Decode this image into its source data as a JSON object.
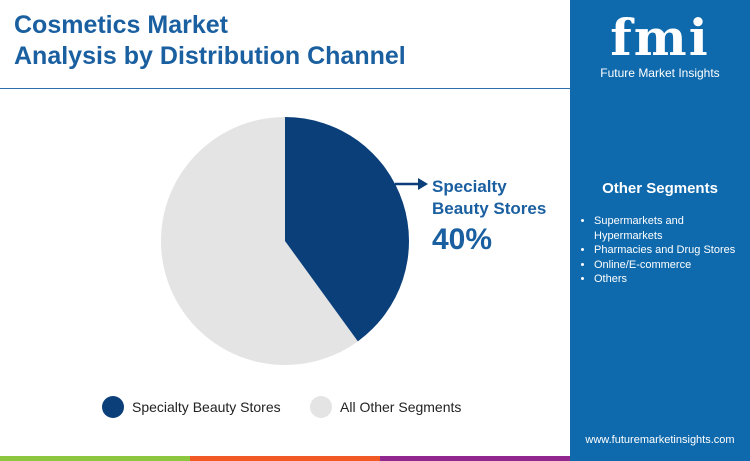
{
  "title": [
    "Cosmetics Market",
    "Analysis by Distribution Channel"
  ],
  "brand": {
    "logo": "fmi",
    "name": "Future Market Insights",
    "url": "www.futuremarketinsights.com"
  },
  "side": {
    "heading": "Other Segments",
    "items": [
      "Supermarkets and Hypermarkets",
      "Pharmacies and Drug Stores",
      "Online/E-commerce",
      "Others"
    ]
  },
  "colors": {
    "primary": "#0b3f7a",
    "other": "#e4e4e4",
    "panel": "#0f6aad",
    "bars": [
      "#8dc63f",
      "#f15a24",
      "#92278f"
    ]
  },
  "chart_data": {
    "type": "pie",
    "slices": [
      {
        "name": "Specialty Beauty Stores",
        "value": 40,
        "color": "#0b3f7a"
      },
      {
        "name": "All Other Segments",
        "value": 60,
        "color": "#e4e4e4"
      }
    ],
    "callout": {
      "label": "Specialty Beauty Stores",
      "value": "40%"
    },
    "legend": "bottom"
  }
}
